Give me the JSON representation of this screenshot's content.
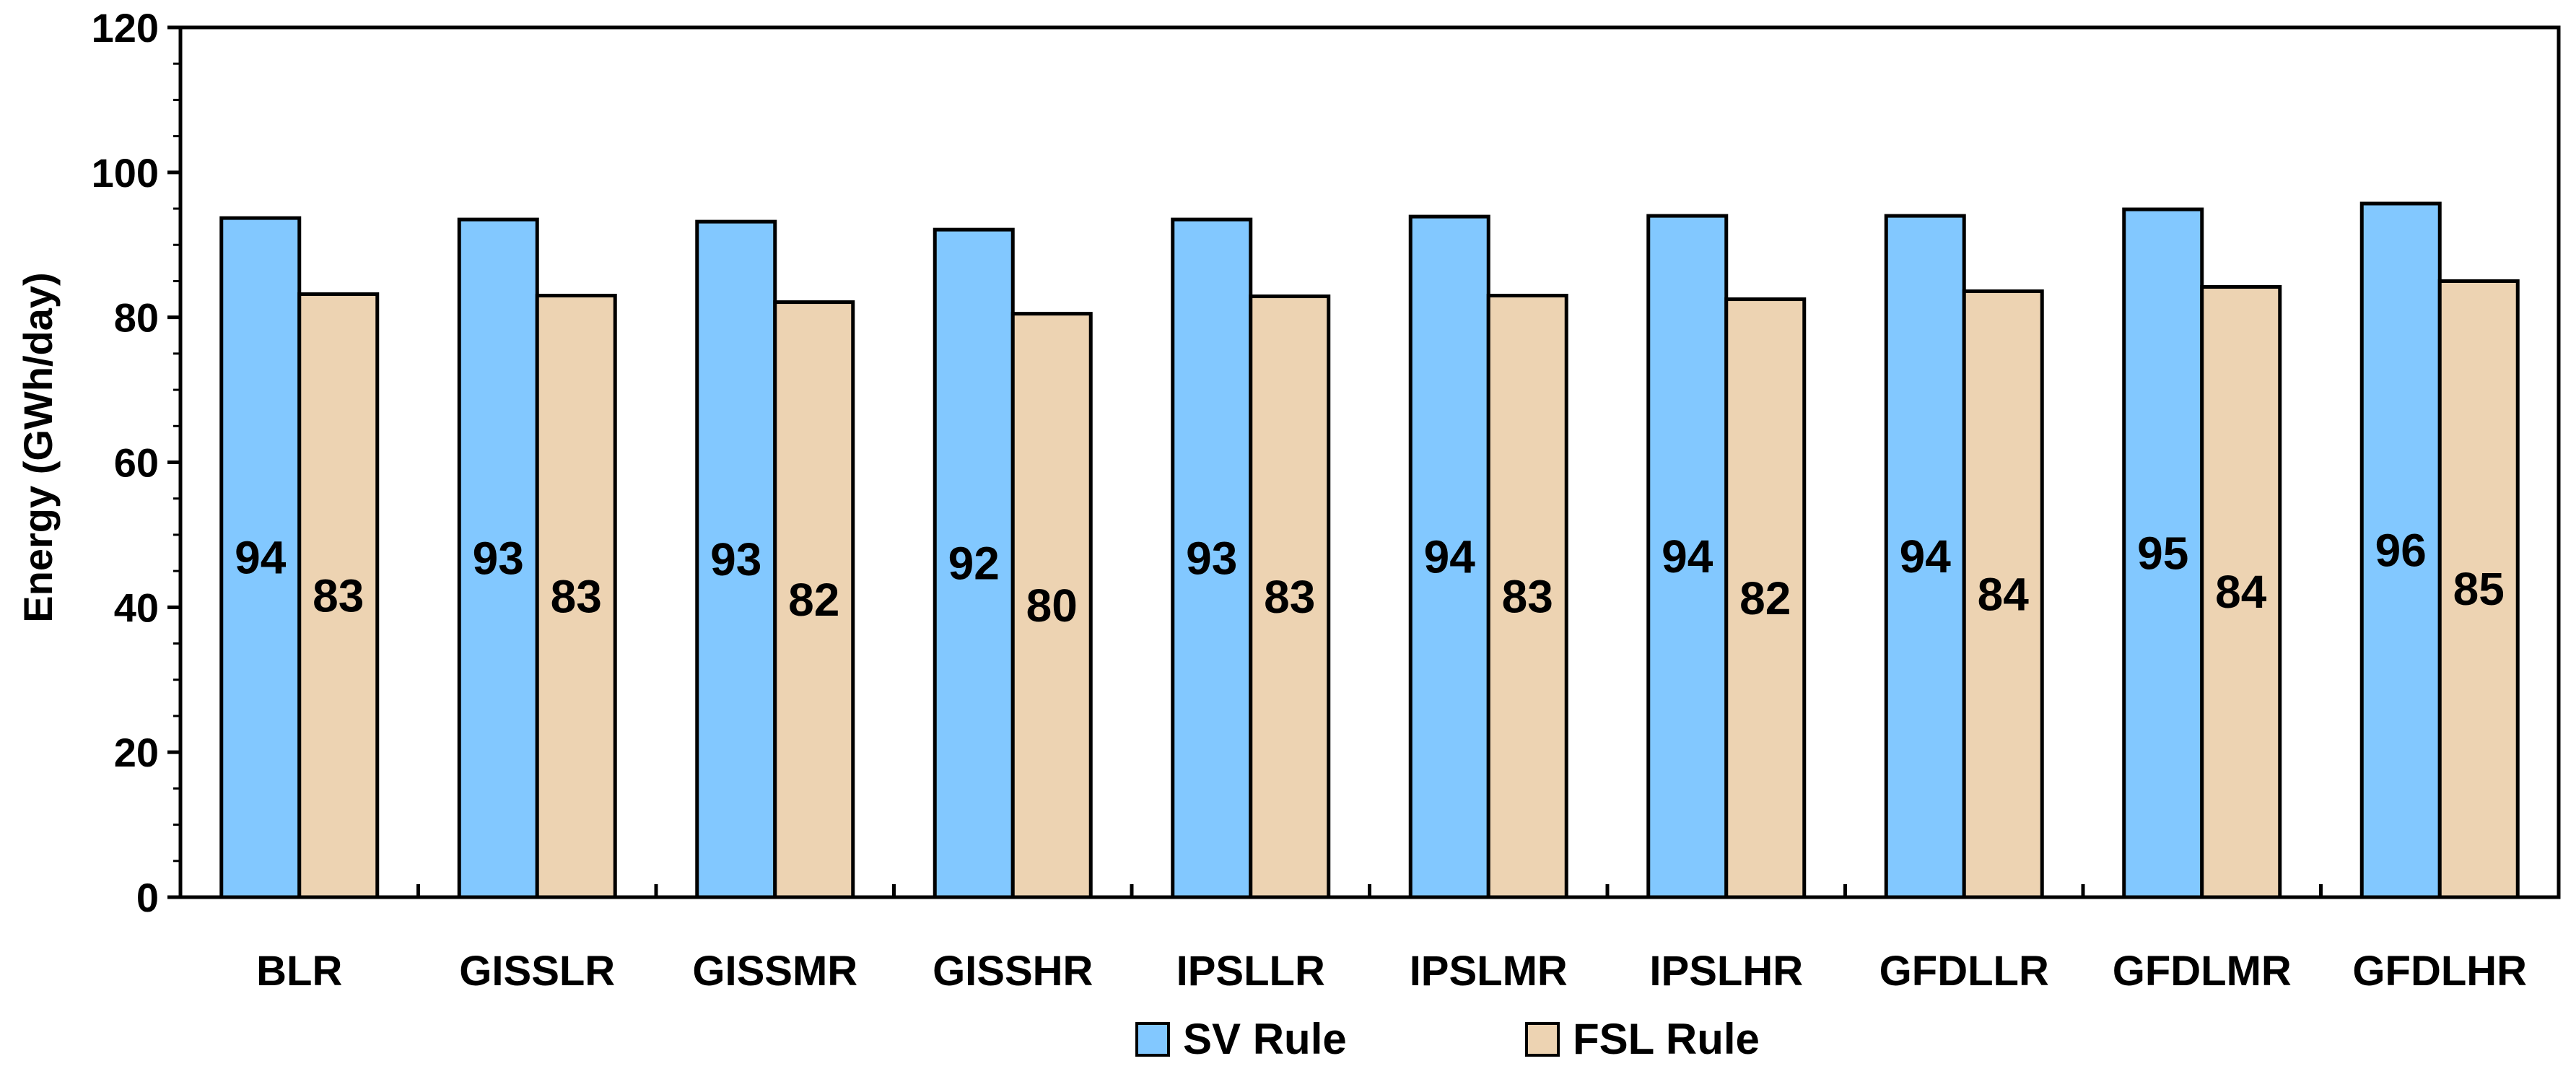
{
  "chart_data": {
    "type": "bar",
    "categories": [
      "BLR",
      "GISSLR",
      "GISSMR",
      "GISSHR",
      "IPSLLR",
      "IPSLMR",
      "IPSLHR",
      "GFDLLR",
      "GFDLMR",
      "GFDLHR"
    ],
    "series": [
      {
        "name": "SV Rule",
        "values": [
          93.7,
          93.5,
          93.2,
          92.1,
          93.5,
          93.9,
          94.0,
          94.0,
          94.9,
          95.7
        ],
        "labels": [
          "94",
          "93",
          "93",
          "92",
          "93",
          "94",
          "94",
          "94",
          "95",
          "96"
        ],
        "color": "#82C8FF"
      },
      {
        "name": "FSL Rule",
        "values": [
          83.2,
          83.0,
          82.1,
          80.5,
          82.9,
          83.0,
          82.5,
          83.6,
          84.2,
          85.0
        ],
        "labels": [
          "83",
          "83",
          "82",
          "80",
          "83",
          "83",
          "82",
          "84",
          "84",
          "85"
        ],
        "color": "#EDD3B2"
      }
    ],
    "ylabel": "Energy (GWh/day)",
    "xlabel": "",
    "ylim": [
      0,
      120
    ],
    "yticks": [
      0,
      20,
      40,
      60,
      80,
      100,
      120
    ],
    "grid": false,
    "legend_position": "bottom-center"
  }
}
